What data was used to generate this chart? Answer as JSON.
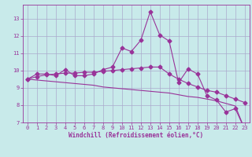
{
  "xlabel": "Windchill (Refroidissement éolien,°C)",
  "background_color": "#c8eaea",
  "grid_color": "#aaaacc",
  "line_color": "#993399",
  "x_data": [
    0,
    1,
    2,
    3,
    4,
    5,
    6,
    7,
    8,
    9,
    10,
    11,
    12,
    13,
    14,
    15,
    16,
    17,
    18,
    19,
    20,
    21,
    22,
    23
  ],
  "y_main": [
    9.5,
    9.8,
    9.8,
    9.7,
    10.05,
    9.7,
    9.7,
    9.8,
    10.05,
    10.2,
    11.3,
    11.1,
    11.75,
    13.4,
    12.05,
    11.7,
    9.3,
    10.1,
    9.8,
    8.55,
    8.3,
    7.6,
    7.8,
    6.6
  ],
  "y_line1": [
    9.5,
    9.65,
    9.75,
    9.8,
    9.85,
    9.85,
    9.9,
    9.9,
    9.95,
    10.0,
    10.05,
    10.1,
    10.15,
    10.2,
    10.2,
    9.8,
    9.5,
    9.25,
    9.05,
    8.85,
    8.75,
    8.55,
    8.35,
    8.15
  ],
  "y_line2": [
    9.5,
    9.45,
    9.4,
    9.35,
    9.3,
    9.25,
    9.2,
    9.15,
    9.05,
    9.0,
    8.95,
    8.9,
    8.85,
    8.8,
    8.75,
    8.7,
    8.6,
    8.5,
    8.45,
    8.35,
    8.25,
    8.1,
    7.95,
    6.6
  ],
  "ylim": [
    7,
    13.8
  ],
  "xlim": [
    -0.5,
    23.5
  ],
  "yticks": [
    7,
    8,
    9,
    10,
    11,
    12,
    13
  ],
  "xticks": [
    0,
    1,
    2,
    3,
    4,
    5,
    6,
    7,
    8,
    9,
    10,
    11,
    12,
    13,
    14,
    15,
    16,
    17,
    18,
    19,
    20,
    21,
    22,
    23
  ],
  "marker": "D",
  "markersize": 2.5,
  "linewidth": 0.8,
  "label_fontsize": 5.5,
  "tick_fontsize": 5.0
}
